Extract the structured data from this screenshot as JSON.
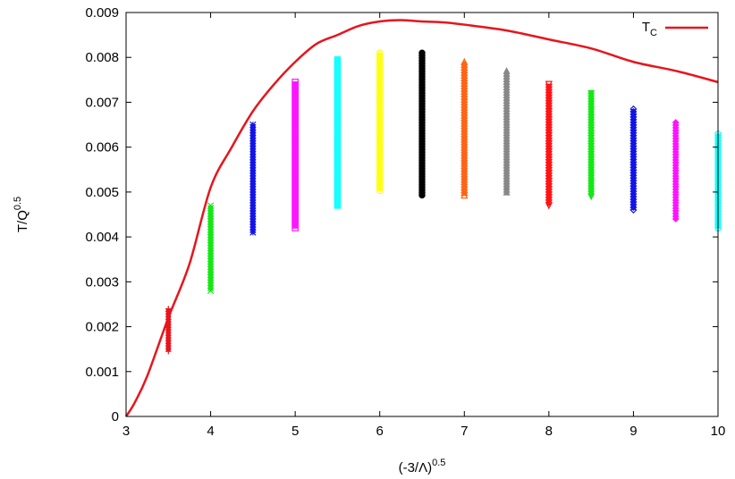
{
  "chart_data": {
    "type": "scatter",
    "xlabel": "(-3/Λ)",
    "xlabel_exp": "0.5",
    "ylabel": "T/Q",
    "ylabel_exp": "0.5",
    "xlim": [
      3,
      10
    ],
    "ylim": [
      0,
      0.009
    ],
    "x_ticks": [
      3,
      4,
      5,
      6,
      7,
      8,
      9,
      10
    ],
    "y_ticks": [
      "0",
      "0.001",
      "0.002",
      "0.003",
      "0.004",
      "0.005",
      "0.006",
      "0.007",
      "0.008",
      "0.009"
    ],
    "grid": false,
    "legend_position": "top-right",
    "legend": {
      "label": "T",
      "label_sub": "C"
    },
    "curve": {
      "name": "TC",
      "color": "#e8141c",
      "x": [
        3.0,
        3.1,
        3.25,
        3.5,
        3.75,
        4.0,
        4.25,
        4.5,
        4.75,
        5.0,
        5.25,
        5.5,
        5.75,
        6.0,
        6.25,
        6.5,
        6.75,
        7.0,
        7.5,
        8.0,
        8.5,
        9.0,
        9.5,
        10.0
      ],
      "y": [
        0.0,
        0.0003,
        0.0009,
        0.0022,
        0.0034,
        0.0051,
        0.006,
        0.0068,
        0.0074,
        0.0079,
        0.0083,
        0.0085,
        0.0087,
        0.0088,
        0.00883,
        0.0088,
        0.00878,
        0.00873,
        0.0086,
        0.0084,
        0.0082,
        0.0079,
        0.0077,
        0.00745
      ]
    },
    "series": [
      {
        "x": 3.5,
        "y_min": 0.00145,
        "y_max": 0.0024,
        "color": "#e8141c",
        "marker": "plus"
      },
      {
        "x": 4.0,
        "y_min": 0.0028,
        "y_max": 0.0047,
        "color": "#14e814",
        "marker": "cross"
      },
      {
        "x": 4.5,
        "y_min": 0.0041,
        "y_max": 0.0065,
        "color": "#1414e8",
        "marker": "star"
      },
      {
        "x": 5.0,
        "y_min": 0.0042,
        "y_max": 0.00745,
        "color": "#ff14ff",
        "marker": "square"
      },
      {
        "x": 5.5,
        "y_min": 0.0047,
        "y_max": 0.00795,
        "color": "#14ffff",
        "marker": "filled-square"
      },
      {
        "x": 6.0,
        "y_min": 0.00503,
        "y_max": 0.0081,
        "color": "#ffff14",
        "marker": "circle"
      },
      {
        "x": 6.5,
        "y_min": 0.00493,
        "y_max": 0.0081,
        "color": "#000000",
        "marker": "filled-circle"
      },
      {
        "x": 7.0,
        "y_min": 0.00493,
        "y_max": 0.0079,
        "color": "#ff6414",
        "marker": "triangle"
      },
      {
        "x": 7.5,
        "y_min": 0.005,
        "y_max": 0.0077,
        "color": "#888888",
        "marker": "filled-triangle"
      },
      {
        "x": 8.0,
        "y_min": 0.0047,
        "y_max": 0.0074,
        "color": "#ff1414",
        "marker": "inv-triangle"
      },
      {
        "x": 8.5,
        "y_min": 0.0049,
        "y_max": 0.0072,
        "color": "#14e814",
        "marker": "filled-inv-triangle"
      },
      {
        "x": 9.0,
        "y_min": 0.0046,
        "y_max": 0.00685,
        "color": "#1414e8",
        "marker": "diamond"
      },
      {
        "x": 9.5,
        "y_min": 0.0044,
        "y_max": 0.00655,
        "color": "#ff14ff",
        "marker": "filled-diamond"
      },
      {
        "x": 10.0,
        "y_min": 0.0042,
        "y_max": 0.0063,
        "color": "#14ffff",
        "marker": "pentagon"
      }
    ]
  }
}
